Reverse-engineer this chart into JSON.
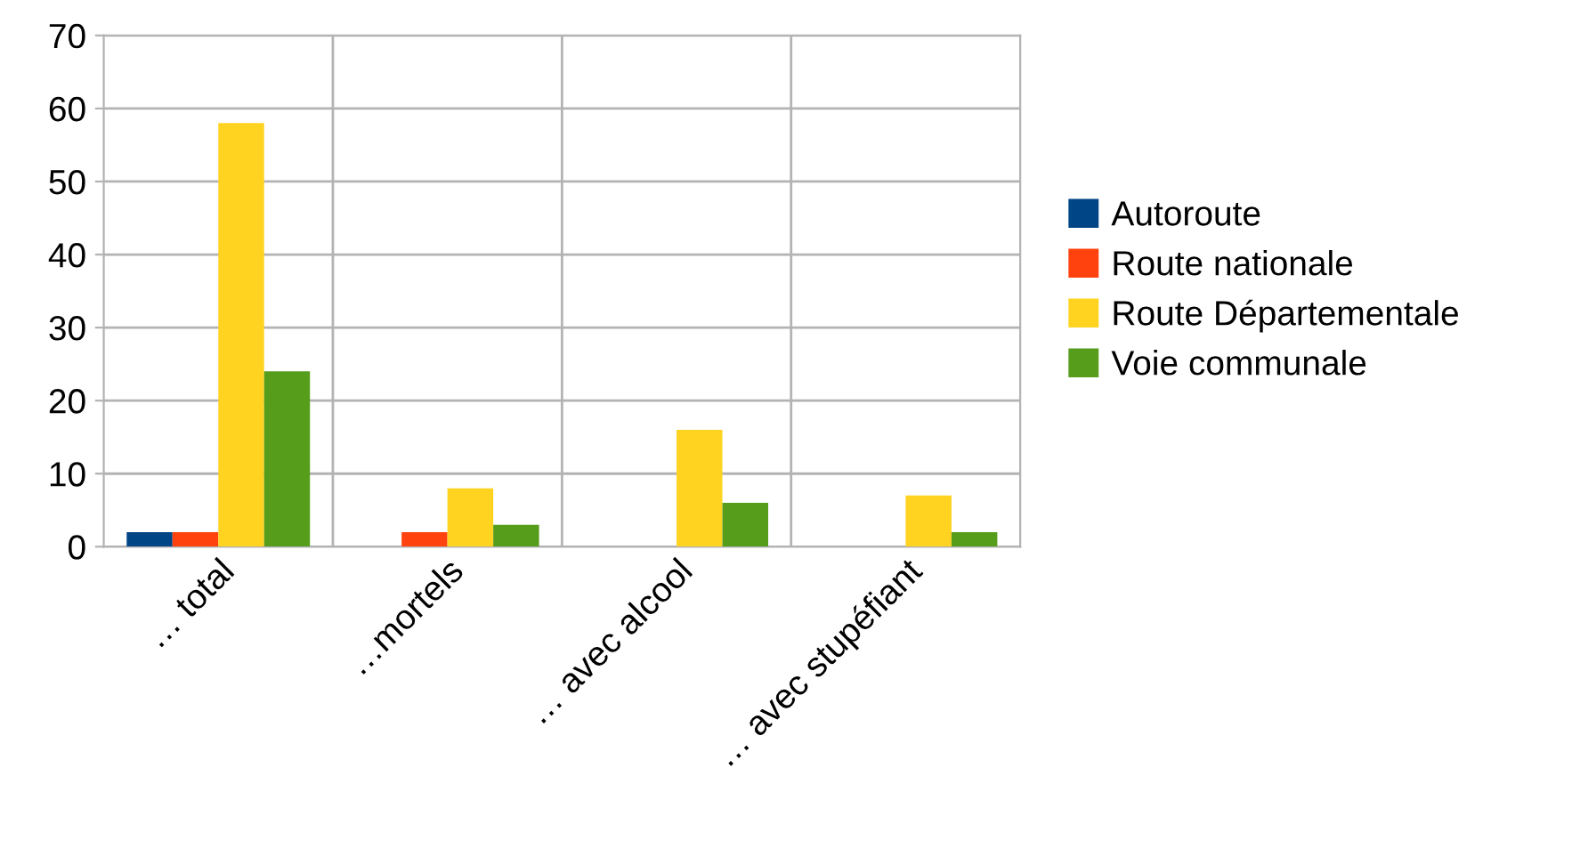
{
  "chart_data": {
    "type": "bar",
    "categories": [
      "… total",
      "…mortels",
      "… avec alcool",
      "… avec stupéfiant"
    ],
    "series": [
      {
        "name": "Autoroute",
        "color": "#004586",
        "values": [
          2,
          0,
          0,
          0
        ]
      },
      {
        "name": "Route nationale",
        "color": "#ff420e",
        "values": [
          2,
          2,
          0,
          0
        ]
      },
      {
        "name": "Route Départementale",
        "color": "#ffd320",
        "values": [
          58,
          8,
          16,
          7
        ]
      },
      {
        "name": "Voie communale",
        "color": "#579d1c",
        "values": [
          24,
          3,
          6,
          2
        ]
      }
    ],
    "ylim": [
      0,
      70
    ],
    "yticks": [
      0,
      10,
      20,
      30,
      40,
      50,
      60,
      70
    ],
    "grid": true,
    "legend": "right"
  }
}
